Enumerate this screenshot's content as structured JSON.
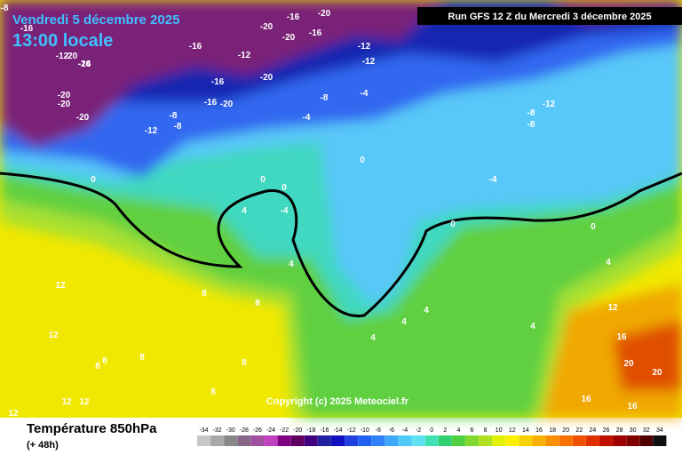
{
  "header": {
    "date": "Vendredi 5 décembre 2025",
    "time": "13:00 locale",
    "run": "Run GFS 12 Z du Mercredi 3 décembre 2025"
  },
  "map": {
    "copyright": "Copyright (c) 2025 Meteociel.fr",
    "labels": [
      "-8",
      "-12",
      "-16",
      "-20",
      "-24",
      "-20",
      "-20",
      "-20",
      "-16",
      "-20",
      "-16",
      "-20",
      "-16",
      "-20",
      "-16",
      "-12",
      "-16",
      "-12",
      "-20",
      "-12",
      "-20",
      "-16",
      "-12",
      "-8",
      "-8",
      "-4",
      "-8",
      "-12",
      "-4",
      "-8",
      "-8",
      "-4",
      "0",
      "0",
      "0",
      "4",
      "-4",
      "0",
      "0",
      "0",
      "4",
      "8",
      "12",
      "12",
      "8",
      "8",
      "8",
      "12",
      "4",
      "8",
      "4",
      "4",
      "12",
      "12",
      "16",
      "20",
      "20",
      "16",
      "16",
      "12",
      "4",
      "8",
      "8",
      "4"
    ]
  },
  "footer": {
    "title": "Température 850hPa",
    "subtitle": "(+ 48h)",
    "scale": {
      "ticks": [
        -34,
        -32,
        -30,
        -28,
        -26,
        -24,
        -22,
        -20,
        -18,
        -16,
        -14,
        -12,
        -10,
        -8,
        -6,
        -4,
        -2,
        0,
        2,
        4,
        6,
        8,
        10,
        12,
        14,
        16,
        18,
        20,
        22,
        24,
        26,
        28,
        30,
        32,
        34
      ],
      "colors": [
        "#c8c8c8",
        "#a8a8a8",
        "#888888",
        "#886888",
        "#a050a0",
        "#c040c0",
        "#800080",
        "#600060",
        "#400080",
        "#2020a0",
        "#1010c0",
        "#2040e0",
        "#2060f0",
        "#3080f8",
        "#40a8f8",
        "#50c8f8",
        "#60e0f0",
        "#40e0b0",
        "#30d070",
        "#50d040",
        "#80d830",
        "#b0e020",
        "#e0f000",
        "#f8f000",
        "#f8d000",
        "#f8b000",
        "#f89000",
        "#f87000",
        "#f05000",
        "#e03000",
        "#c01000",
        "#a00000",
        "#800000",
        "#500000",
        "#101010"
      ]
    }
  }
}
